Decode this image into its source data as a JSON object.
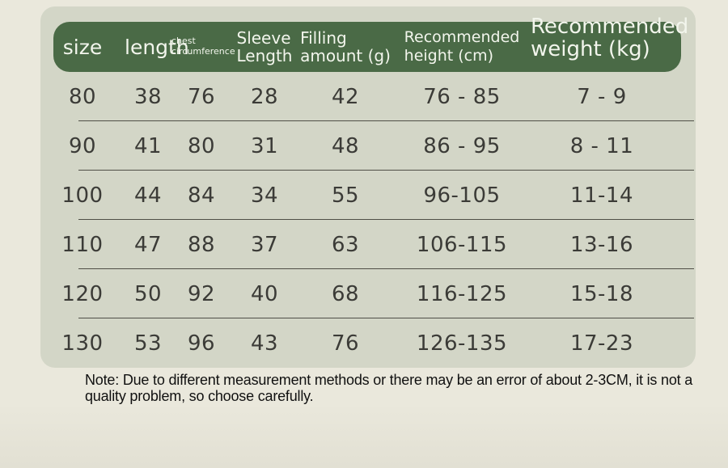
{
  "table": {
    "columns": [
      {
        "id": "size",
        "header_lines": [
          "size"
        ]
      },
      {
        "id": "length",
        "header_lines": [
          "length"
        ]
      },
      {
        "id": "chest",
        "header_lines": [
          "chest",
          "circumference"
        ]
      },
      {
        "id": "sleeve",
        "header_lines": [
          "Sleeve",
          "Length"
        ]
      },
      {
        "id": "filling",
        "header_lines": [
          "Filling",
          "amount (g)"
        ]
      },
      {
        "id": "rec-height",
        "header_lines": [
          "Recommended",
          "height (cm)"
        ]
      },
      {
        "id": "rec-weight",
        "header_lines": [
          "Recommended",
          "weight (kg)"
        ]
      }
    ],
    "rows": [
      [
        "80",
        "38",
        "76",
        "28",
        "42",
        "76 - 85",
        "7 - 9"
      ],
      [
        "90",
        "41",
        "80",
        "31",
        "48",
        "86 - 95",
        "8 - 11"
      ],
      [
        "100",
        "44",
        "84",
        "34",
        "55",
        "96-105",
        "11-14"
      ],
      [
        "110",
        "47",
        "88",
        "37",
        "63",
        "106-115",
        "13-16"
      ],
      [
        "120",
        "50",
        "92",
        "40",
        "68",
        "116-125",
        "15-18"
      ],
      [
        "130",
        "53",
        "96",
        "43",
        "76",
        "126-135",
        "17-23"
      ]
    ]
  },
  "note": {
    "text": "Note: Due to different measurement methods or there may be an error of about 2-3CM, it is not a quality problem, so choose carefully."
  },
  "colors": {
    "page_bg": "#eae8dc",
    "panel_bg": "#d3d6c7",
    "header_bg": "#4a6a46",
    "header_text": "#f2f5ec",
    "cell_text": "#3b3b37",
    "divider": "#4f4f47",
    "note_text": "#111111"
  }
}
